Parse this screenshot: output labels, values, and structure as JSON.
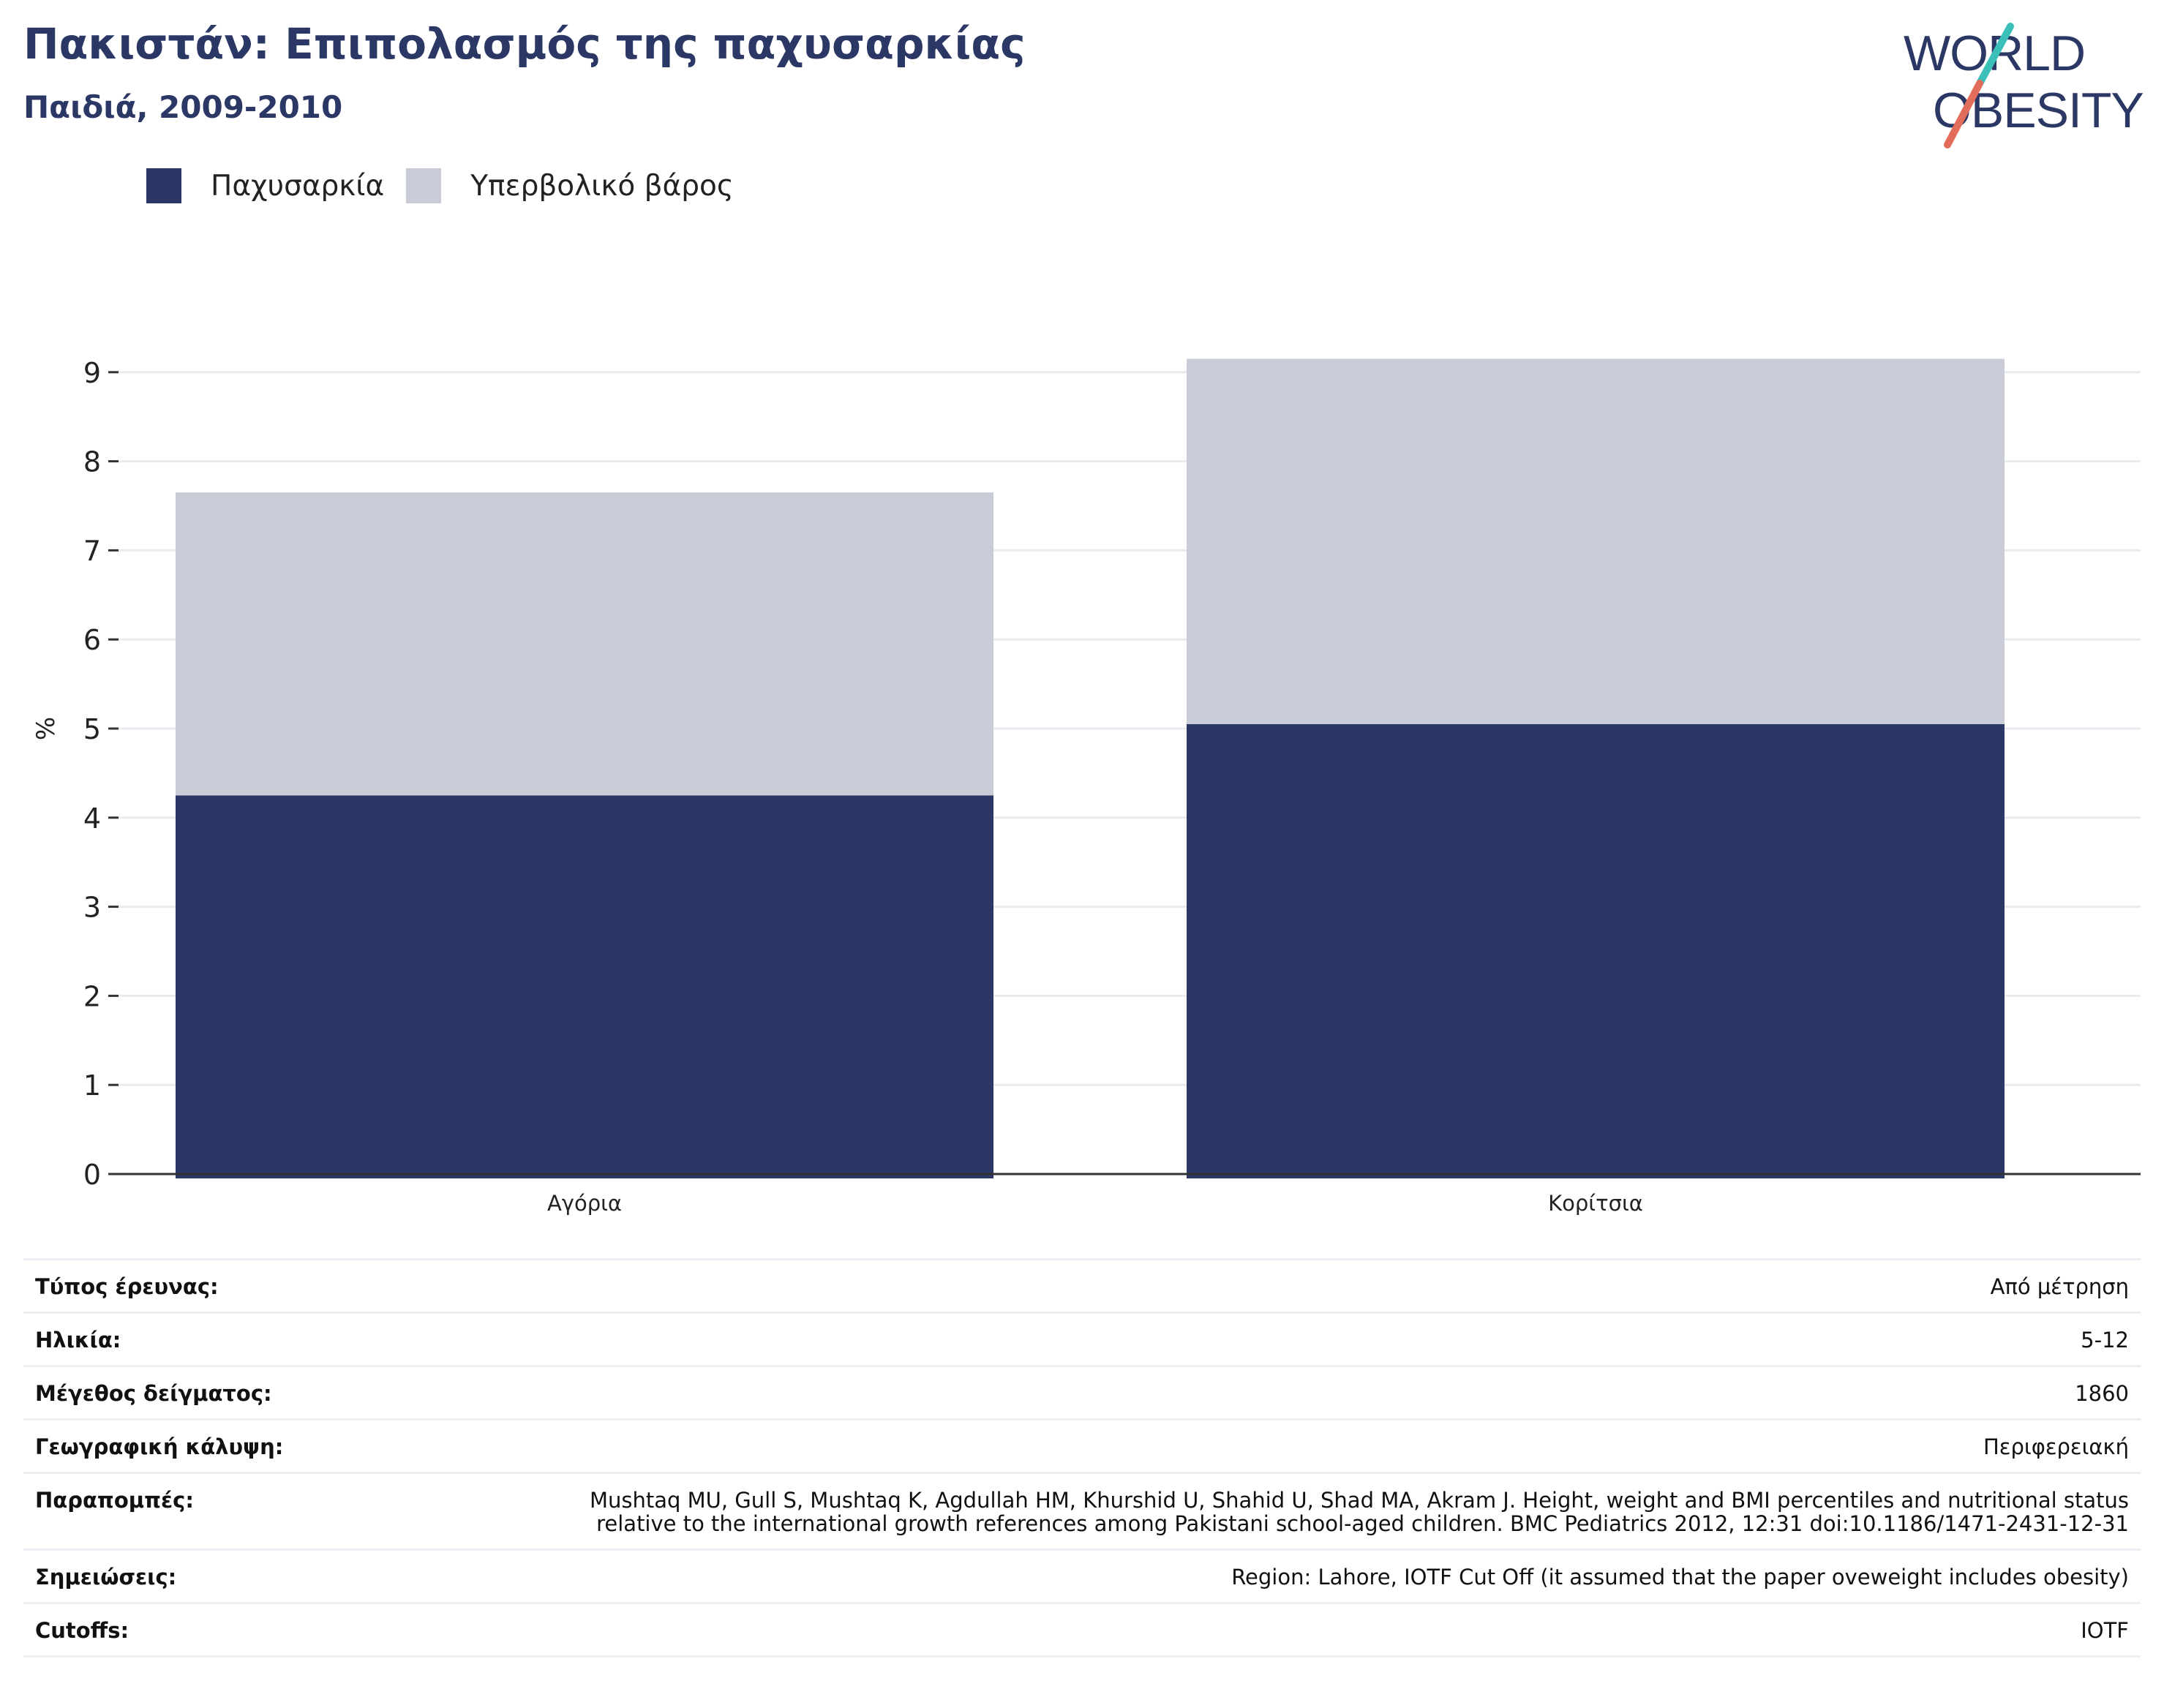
{
  "header": {
    "title": "Πακιστάν: Επιπολασμός της παχυσαρκίας",
    "subtitle": "Παιδιά, 2009-2010"
  },
  "logo": {
    "line1": "WORLD",
    "line2": "OBESITY"
  },
  "colors": {
    "obesity": "#2b3764",
    "overweight": "#c9cbd7",
    "brand_navy": "#2b3764",
    "logo_teal": "#3bbfb9",
    "logo_coral": "#e36d5b"
  },
  "legend": [
    {
      "label": "Παχυσαρκία",
      "color": "#2b3764"
    },
    {
      "label": "Υπερβολικό βάρος",
      "color": "#c9cbd7"
    }
  ],
  "chart_data": {
    "type": "bar",
    "stacked": true,
    "categories": [
      "Αγόρια",
      "Κορίτσια"
    ],
    "series": [
      {
        "name": "Παχυσαρκία",
        "values": [
          4.25,
          5.05
        ]
      },
      {
        "name": "Υπερβολικό βάρος",
        "values": [
          3.4,
          4.1
        ]
      }
    ],
    "ylabel": "%",
    "ylim": [
      0,
      9.5
    ],
    "yticks": [
      0,
      1,
      2,
      3,
      4,
      5,
      6,
      7,
      8,
      9
    ],
    "grid": true,
    "legend_position": "top-left"
  },
  "details": [
    {
      "key": "Τύπος έρευνας:",
      "value": "Από μέτρηση"
    },
    {
      "key": "Ηλικία:",
      "value": "5-12"
    },
    {
      "key": "Μέγεθος δείγματος:",
      "value": "1860"
    },
    {
      "key": "Γεωγραφική κάλυψη:",
      "value": "Περιφερειακή"
    },
    {
      "key": "Παραπομπές:",
      "value": "Mushtaq MU, Gull S, Mushtaq K, Agdullah HM, Khurshid U, Shahid U, Shad MA, Akram J. Height, weight and BMI percentiles and nutritional status relative to the international growth references among Pakistani school-aged children. BMC Pediatrics 2012, 12:31 doi:10.1186/1471-2431-12-31"
    },
    {
      "key": "Σημειώσεις:",
      "value": "Region: Lahore, IOTF Cut Off (it assumed that the paper oveweight includes obesity)"
    },
    {
      "key": "Cutoffs:",
      "value": "IOTF"
    }
  ]
}
